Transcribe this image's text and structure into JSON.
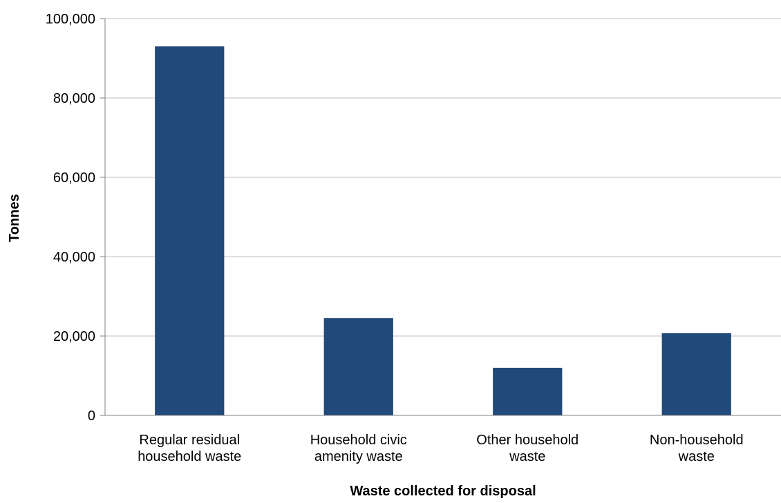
{
  "chart_data": {
    "type": "bar",
    "title": "",
    "xlabel": "Waste collected for disposal",
    "ylabel": "Tonnes",
    "categories": [
      [
        "Regular residual",
        "household waste"
      ],
      [
        "Household civic",
        "amenity waste"
      ],
      [
        "Other household",
        "waste"
      ],
      [
        "Non-household",
        "waste"
      ]
    ],
    "values": [
      93000,
      24500,
      12000,
      20700
    ],
    "ylim": [
      0,
      100000
    ],
    "yticks": [
      0,
      20000,
      40000,
      60000,
      80000,
      100000
    ],
    "ytick_labels": [
      "0",
      "20,000",
      "40,000",
      "60,000",
      "80,000",
      "100,000"
    ],
    "grid": true,
    "legend": "none",
    "colors": {
      "bar": "#21497A",
      "grid": "#BFBFBF",
      "axis": "#808080"
    }
  }
}
